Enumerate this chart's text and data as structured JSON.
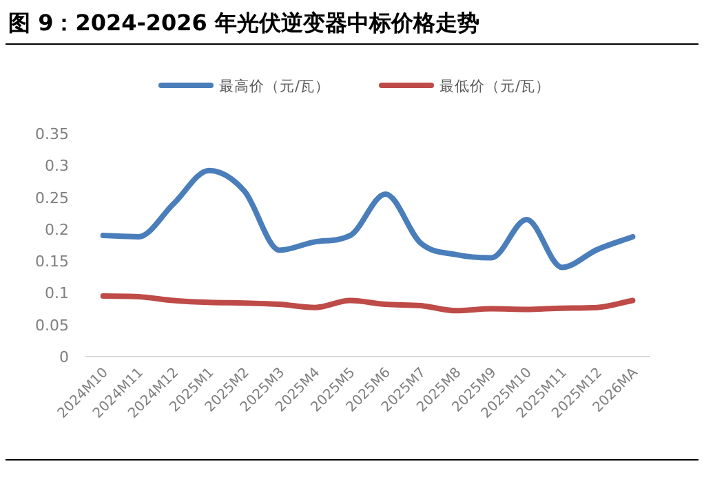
{
  "chart_data": {
    "type": "line",
    "title": "图 9：2024-2026 年光伏逆变器中标价格走势",
    "categories": [
      "2024M10",
      "2024M11",
      "2024M12",
      "2025M1",
      "2025M2",
      "2025M3",
      "2025M4",
      "2025M5",
      "2025M6",
      "2025M7",
      "2025M8",
      "2025M9",
      "2025M10",
      "2025M11",
      "2025M12",
      "2026MA"
    ],
    "series": [
      {
        "name": "最高价（元/瓦）",
        "color": "#4a7ebb",
        "values": [
          0.19,
          0.188,
          0.24,
          0.292,
          0.26,
          0.167,
          0.18,
          0.19,
          0.255,
          0.178,
          0.16,
          0.155,
          0.215,
          0.14,
          0.168,
          0.188
        ]
      },
      {
        "name": "最低价（元/瓦）",
        "color": "#be4b48",
        "values": [
          0.095,
          0.094,
          0.088,
          0.085,
          0.084,
          0.082,
          0.077,
          0.088,
          0.082,
          0.08,
          0.072,
          0.075,
          0.074,
          0.076,
          0.077,
          0.088
        ]
      }
    ],
    "ylim": [
      0,
      0.35
    ],
    "yticks": [
      0,
      0.05,
      0.1,
      0.15,
      0.2,
      0.25,
      0.3,
      0.35
    ],
    "legend": "top",
    "grid": false
  }
}
